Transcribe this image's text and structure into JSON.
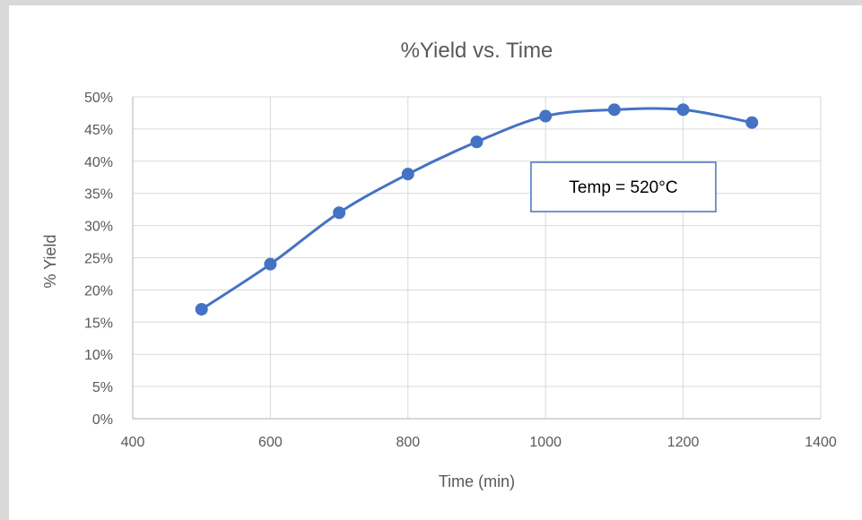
{
  "chart_data": {
    "type": "scatter",
    "title": "%Yield vs. Time",
    "xlabel": "Time (min)",
    "ylabel": "% Yield",
    "xlim": [
      400,
      1400
    ],
    "ylim": [
      0,
      50
    ],
    "x_ticks": [
      400,
      600,
      800,
      1000,
      1200,
      1400
    ],
    "y_ticks": [
      0,
      5,
      10,
      15,
      20,
      25,
      30,
      35,
      40,
      45,
      50
    ],
    "y_tick_labels": [
      "0%",
      "5%",
      "10%",
      "15%",
      "20%",
      "25%",
      "30%",
      "35%",
      "40%",
      "45%",
      "50%"
    ],
    "x_tick_labels": [
      "400",
      "600",
      "800",
      "1000",
      "1200",
      "1400"
    ],
    "grid": true,
    "series": [
      {
        "marker": "circle",
        "line": "smooth",
        "x": [
          500,
          600,
          700,
          800,
          900,
          1000,
          1100,
          1200,
          1300
        ],
        "y": [
          17,
          24,
          32,
          38,
          43,
          47,
          48,
          48,
          46
        ]
      }
    ],
    "annotations": [
      {
        "text": "Temp = 520°C"
      }
    ]
  },
  "colors": {
    "series": "#4472c4",
    "grid": "#d9d9d9",
    "axis": "#bfbfbf",
    "text": "#595959",
    "annotation_border": "#4472c4"
  }
}
